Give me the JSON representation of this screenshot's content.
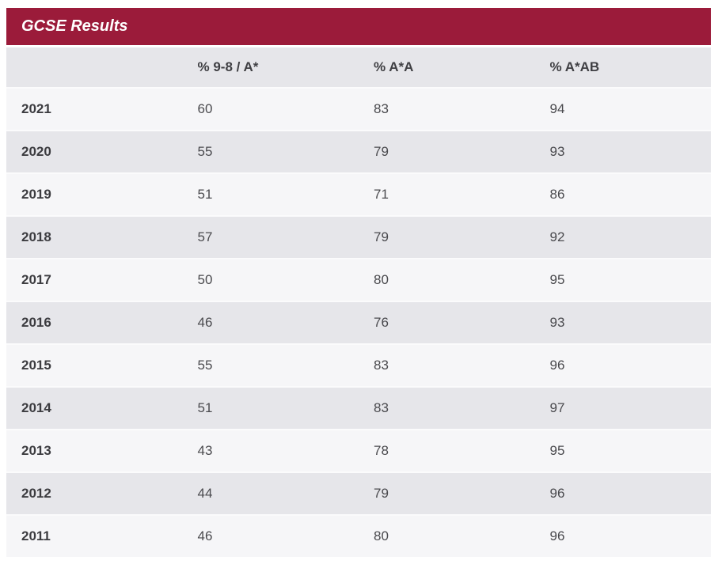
{
  "title": "GCSE Results",
  "colors": {
    "accent": "#9B1B3A",
    "title_text": "#FFFFFF",
    "header_row_bg": "#E6E6EA",
    "row_odd_bg": "#F6F6F8",
    "row_even_bg": "#E6E6EA",
    "year_text": "#3C3C40",
    "value_text": "#4A4A4E"
  },
  "chart_data": {
    "type": "table",
    "title": "GCSE Results",
    "columns": [
      "",
      "% 9-8 / A*",
      "% A*A",
      "% A*AB"
    ],
    "rows": [
      [
        "2021",
        60,
        83,
        94
      ],
      [
        "2020",
        55,
        79,
        93
      ],
      [
        "2019",
        51,
        71,
        86
      ],
      [
        "2018",
        57,
        79,
        92
      ],
      [
        "2017",
        50,
        80,
        95
      ],
      [
        "2016",
        46,
        76,
        93
      ],
      [
        "2015",
        55,
        83,
        96
      ],
      [
        "2014",
        51,
        83,
        97
      ],
      [
        "2013",
        43,
        78,
        95
      ],
      [
        "2012",
        44,
        79,
        96
      ],
      [
        "2011",
        46,
        80,
        96
      ]
    ]
  }
}
